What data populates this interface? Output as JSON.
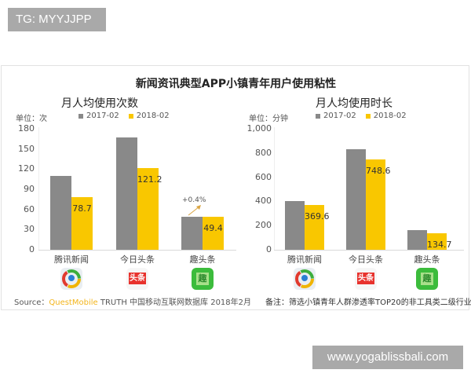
{
  "watermarks": {
    "top_left": "TG: MYYJJPP",
    "bottom_right": "www.yogablissbali.com"
  },
  "panel": {
    "title": "新闻资讯典型APP小镇青年用户使用粘性",
    "source_prefix": "Source：",
    "source_brand": "QuestMobile",
    "source_rest": "TRUTH 中国移动互联网数据库 2018年2月",
    "note": "备注：筛选小镇青年人群渗透率TOP20的非工具类二级行业"
  },
  "colors": {
    "series_2017": "#898989",
    "series_2018": "#f9c700"
  },
  "apps": [
    {
      "name": "腾讯新闻",
      "icon": "tencent-news-icon"
    },
    {
      "name": "今日头条",
      "icon": "toutiao-icon",
      "icon_text": "头条"
    },
    {
      "name": "趣头条",
      "icon": "qutoutiao-icon",
      "icon_text": "趣"
    }
  ],
  "chart_data": [
    {
      "type": "bar",
      "title": "月人均使用次数",
      "unit_label": "单位：次",
      "categories": [
        "腾讯新闻",
        "今日头条",
        "趣头条"
      ],
      "series": [
        {
          "name": "2017-02",
          "values": [
            110,
            167,
            49.2
          ]
        },
        {
          "name": "2018-02",
          "values": [
            78.7,
            121.2,
            49.4
          ]
        }
      ],
      "yticks": [
        "0",
        "30",
        "60",
        "90",
        "120",
        "150",
        "180"
      ],
      "ylim": [
        0,
        180
      ],
      "annotations": [
        {
          "category": "趣头条",
          "text": "+0.4%"
        }
      ],
      "legend_position": "top"
    },
    {
      "type": "bar",
      "title": "月人均使用时长",
      "unit_label": "单位：分钟",
      "categories": [
        "腾讯新闻",
        "今日头条",
        "趣头条"
      ],
      "series": [
        {
          "name": "2017-02",
          "values": [
            400,
            830,
            160
          ]
        },
        {
          "name": "2018-02",
          "values": [
            369.6,
            748.6,
            134.7
          ]
        }
      ],
      "yticks": [
        "0",
        "200",
        "400",
        "600",
        "800",
        "1,000"
      ],
      "ylim": [
        0,
        1000
      ],
      "legend_position": "top"
    }
  ]
}
